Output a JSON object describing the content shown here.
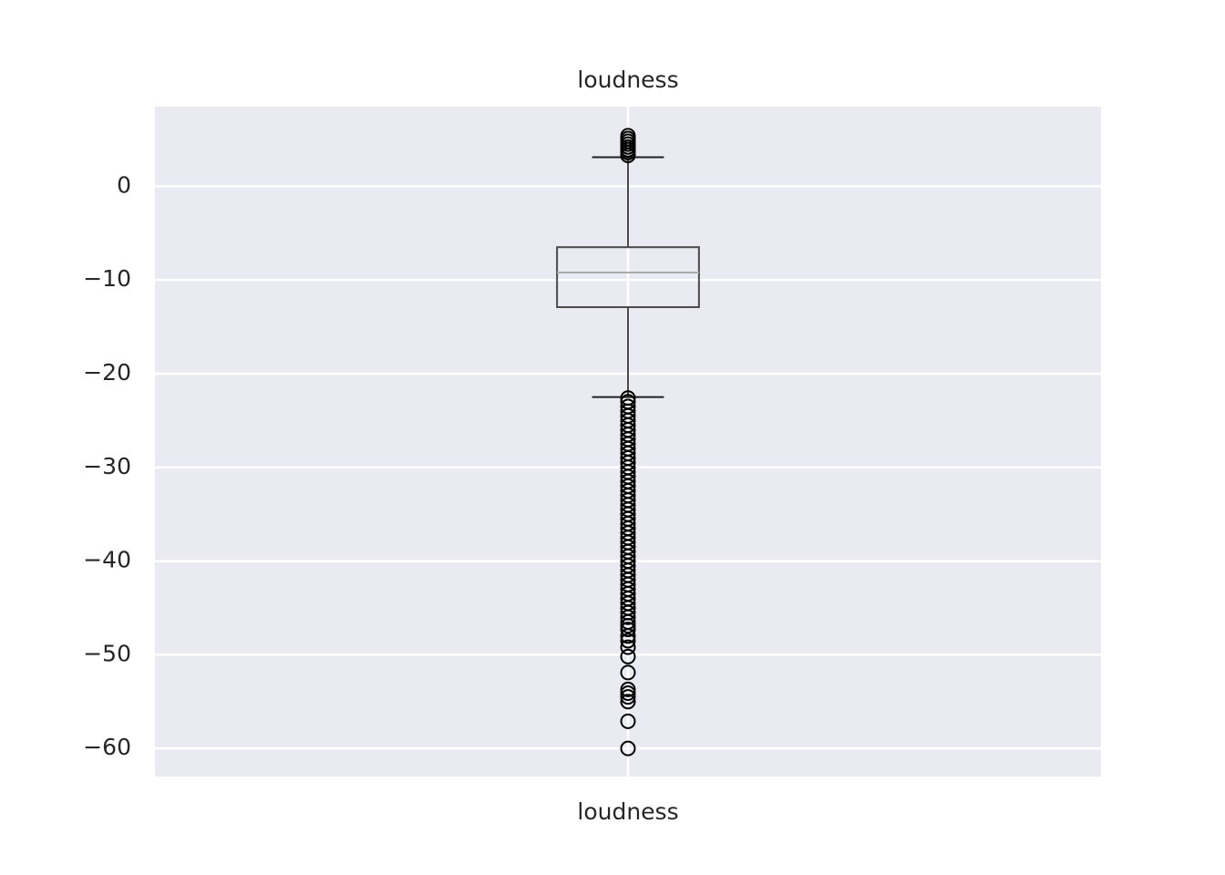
{
  "chart_data": {
    "type": "box",
    "title": "loudness",
    "categories": [
      "loudness"
    ],
    "boxes": [
      {
        "whislo": -22.5,
        "q1": -12.9,
        "median": -9.2,
        "q3": -6.5,
        "whishi": 3.1,
        "fliers": [
          3.3,
          3.6,
          3.9,
          4.2,
          4.5,
          4.8,
          5.1,
          5.4,
          -22.6,
          -23,
          -23.5,
          -24,
          -24.5,
          -25,
          -25.5,
          -26,
          -26.5,
          -27,
          -27.5,
          -28,
          -28.5,
          -29,
          -29.5,
          -30,
          -30.5,
          -31,
          -31.5,
          -32,
          -32.5,
          -33,
          -33.5,
          -34,
          -34.5,
          -35,
          -35.5,
          -36,
          -36.5,
          -37,
          -37.5,
          -38,
          -38.5,
          -39,
          -39.5,
          -40,
          -40.5,
          -41,
          -41.5,
          -42,
          -42.5,
          -43,
          -43.5,
          -44,
          -44.5,
          -45,
          -45.5,
          -46,
          -46.5,
          -46.9,
          -47.3,
          -48.0,
          -48.5,
          -49.2,
          -50.2,
          -51.9,
          -53.7,
          -54.1,
          -54.5,
          -55.0,
          -57.1,
          -60.0
        ]
      }
    ],
    "ylim": [
      -63.0,
      8.5
    ],
    "yticks": [
      {
        "value": -60,
        "label": "−60"
      },
      {
        "value": -50,
        "label": "−50"
      },
      {
        "value": -40,
        "label": "−40"
      },
      {
        "value": -30,
        "label": "−30"
      },
      {
        "value": -20,
        "label": "−20"
      },
      {
        "value": -10,
        "label": "−10"
      },
      0
    ],
    "grid": true
  }
}
